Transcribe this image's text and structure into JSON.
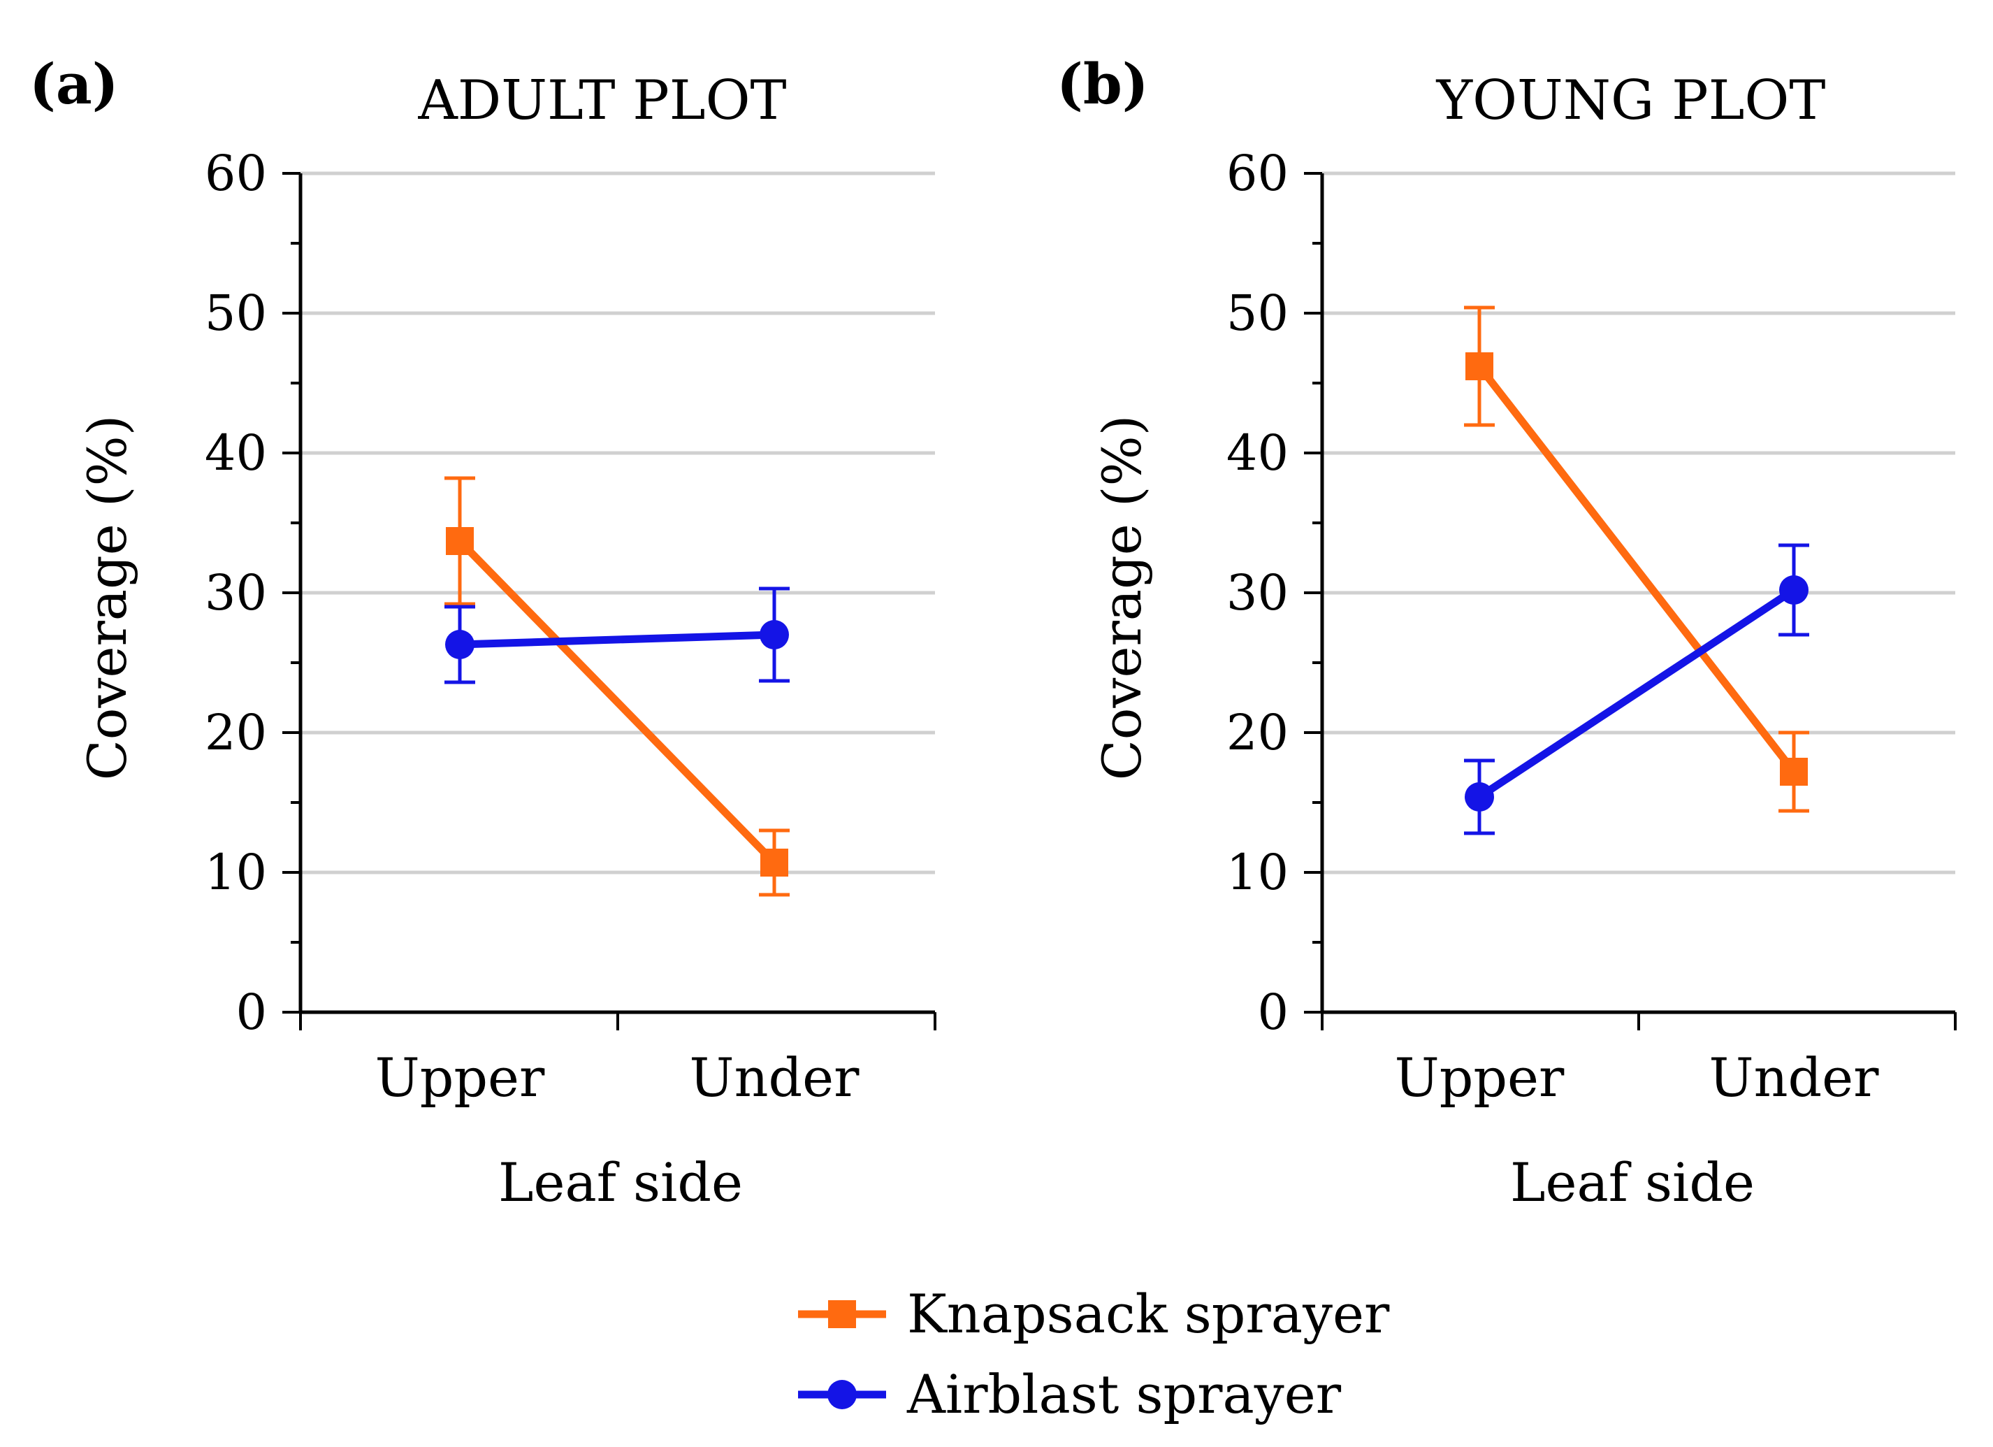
{
  "chart_data": [
    {
      "type": "line",
      "panel_label": "(a)",
      "title": "ADULT PLOT",
      "xlabel": "Leaf side",
      "ylabel": "Coverage (%)",
      "categories": [
        "Upper",
        "Under"
      ],
      "ylim": [
        0,
        60
      ],
      "yticks": [
        "0",
        "10",
        "20",
        "30",
        "40",
        "50",
        "60"
      ],
      "grid": true,
      "series": [
        {
          "name": "Knapsack sprayer",
          "color": "#ff6a10",
          "marker": "square",
          "values": [
            33.7,
            10.7
          ],
          "err_low": [
            29.2,
            8.4
          ],
          "err_high": [
            38.2,
            13.0
          ]
        },
        {
          "name": "Airblast sprayer",
          "color": "#1414e6",
          "marker": "circle",
          "values": [
            26.3,
            27.0
          ],
          "err_low": [
            23.6,
            23.7
          ],
          "err_high": [
            29.0,
            30.3
          ]
        }
      ]
    },
    {
      "type": "line",
      "panel_label": "(b)",
      "title": "YOUNG PLOT",
      "xlabel": "Leaf side",
      "ylabel": "Coverage (%)",
      "categories": [
        "Upper",
        "Under"
      ],
      "ylim": [
        0,
        60
      ],
      "yticks": [
        "0",
        "10",
        "20",
        "30",
        "40",
        "50",
        "60"
      ],
      "grid": true,
      "series": [
        {
          "name": "Knapsack sprayer",
          "color": "#ff6a10",
          "marker": "square",
          "values": [
            46.2,
            17.2
          ],
          "err_low": [
            42.0,
            14.4
          ],
          "err_high": [
            50.4,
            20.0
          ]
        },
        {
          "name": "Airblast sprayer",
          "color": "#1414e6",
          "marker": "circle",
          "values": [
            15.4,
            30.2
          ],
          "err_low": [
            12.8,
            27.0
          ],
          "err_high": [
            18.0,
            33.4
          ]
        }
      ]
    }
  ],
  "legend": {
    "position": "bottom-center",
    "items": [
      {
        "label": "Knapsack sprayer",
        "color": "#ff6a10",
        "marker": "square"
      },
      {
        "label": "Airblast sprayer",
        "color": "#1414e6",
        "marker": "circle"
      }
    ]
  }
}
